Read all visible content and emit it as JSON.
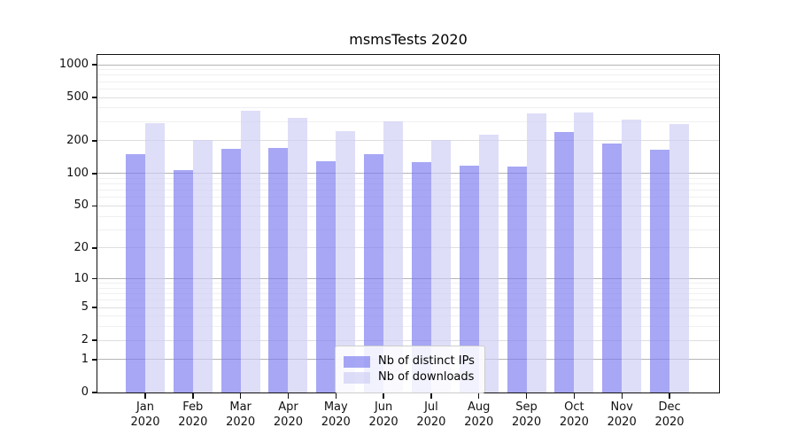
{
  "chart_data": {
    "type": "bar",
    "title": "msmsTests 2020",
    "xlabel": "",
    "ylabel": "",
    "scale": "symlog (log1p)",
    "grid": true,
    "legend_position": "inside lower-center",
    "categories": [
      "Jan 2020",
      "Feb 2020",
      "Mar 2020",
      "Apr 2020",
      "May 2020",
      "Jun 2020",
      "Jul 2020",
      "Aug 2020",
      "Sep 2020",
      "Oct 2020",
      "Nov 2020",
      "Dec 2020"
    ],
    "series": [
      {
        "name": "Nb of distinct IPs",
        "color": "rgba(120,120,240,0.65)",
        "values": [
          150,
          107,
          168,
          172,
          130,
          150,
          127,
          118,
          117,
          240,
          190,
          166
        ]
      },
      {
        "name": "Nb of downloads",
        "color": "rgba(204,204,245,0.65)",
        "values": [
          290,
          204,
          378,
          326,
          246,
          302,
          204,
          228,
          355,
          365,
          313,
          285
        ]
      }
    ],
    "y_ticks": [
      0,
      1,
      2,
      5,
      10,
      20,
      50,
      100,
      200,
      500,
      1000
    ],
    "y_minor_ticks": [
      3,
      4,
      6,
      7,
      8,
      9,
      30,
      40,
      60,
      70,
      80,
      90,
      300,
      400,
      600,
      700,
      800,
      900
    ],
    "ylim": [
      0,
      1200
    ],
    "colors": {
      "grid_major_pow10": "#b5b5b5",
      "grid_major": "#dedede",
      "grid_minor": "#f0f0f0",
      "axis": "#111111"
    }
  }
}
